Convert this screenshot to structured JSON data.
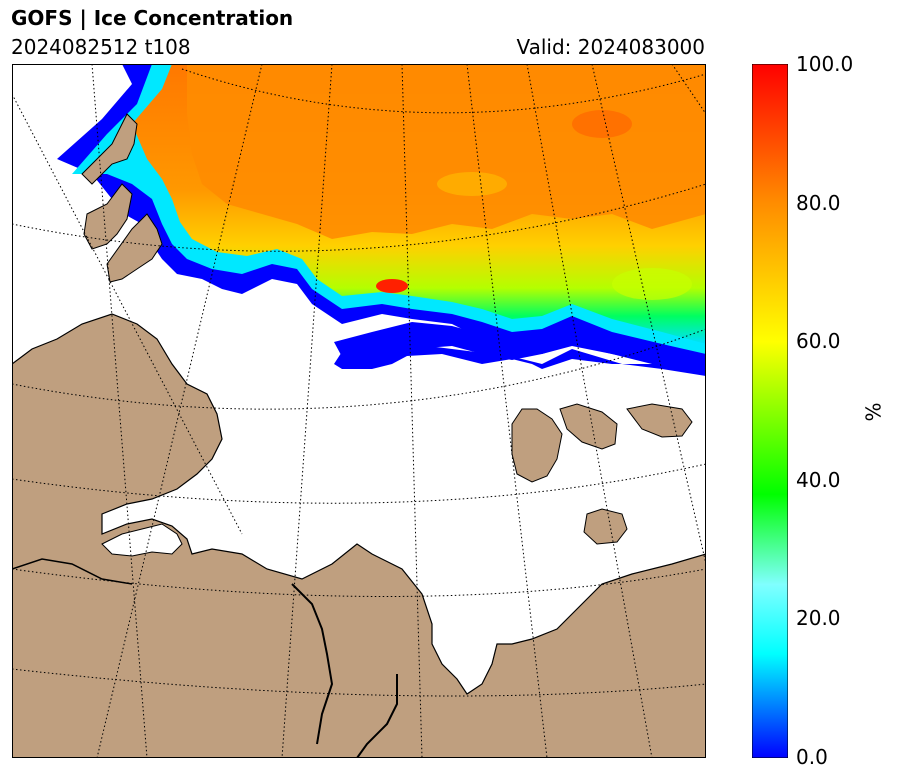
{
  "header": {
    "title": "GOFS  |  Ice Concentration",
    "run": "2024082512 t108",
    "valid": "Valid: 2024083000"
  },
  "colorbar": {
    "ticks": [
      "100.0",
      "80.0",
      "60.0",
      "40.0",
      "20.0",
      "0.0"
    ],
    "unit": "%",
    "colors": [
      "#0000ff",
      "#00ffff",
      "#00ff00",
      "#ffff00",
      "#ff8c00",
      "#ff0000"
    ]
  },
  "map": {
    "land_color": "#bf9f7f",
    "ocean_color": "#ffffff",
    "ice_colors": [
      "#0000ff",
      "#00ffff",
      "#00ff00",
      "#ffff00",
      "#ff8c00",
      "#ff0000"
    ]
  }
}
